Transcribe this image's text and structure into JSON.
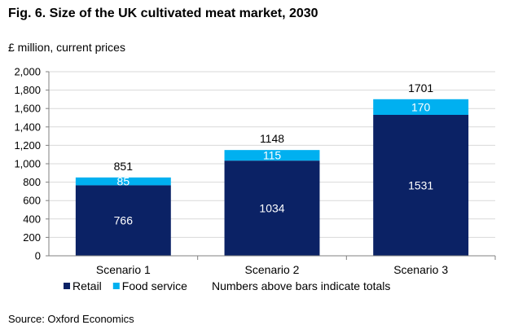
{
  "title": "Fig. 6. Size of the UK cultivated meat market, 2030",
  "unit_label": "£ million, current prices",
  "source": "Source: Oxford Economics",
  "legend_note": "Numbers above bars indicate totals",
  "colors": {
    "Retail": "#0b2265",
    "Food service": "#00b0f0",
    "grid": "#d9d9d9",
    "axis": "#808080"
  },
  "chart_data": {
    "type": "bar",
    "stacked": true,
    "categories": [
      "Scenario 1",
      "Scenario 2",
      "Scenario 3"
    ],
    "series": [
      {
        "name": "Retail",
        "values": [
          766,
          1034,
          1531
        ]
      },
      {
        "name": "Food service",
        "values": [
          85,
          115,
          170
        ]
      }
    ],
    "totals": [
      851,
      1148,
      1701
    ],
    "ylim": [
      0,
      2000
    ],
    "yticks": [
      "0",
      "200",
      "400",
      "600",
      "800",
      "1,000",
      "1,200",
      "1,400",
      "1,600",
      "1,800",
      "2,000"
    ],
    "grid": true,
    "legend_position": "bottom"
  }
}
